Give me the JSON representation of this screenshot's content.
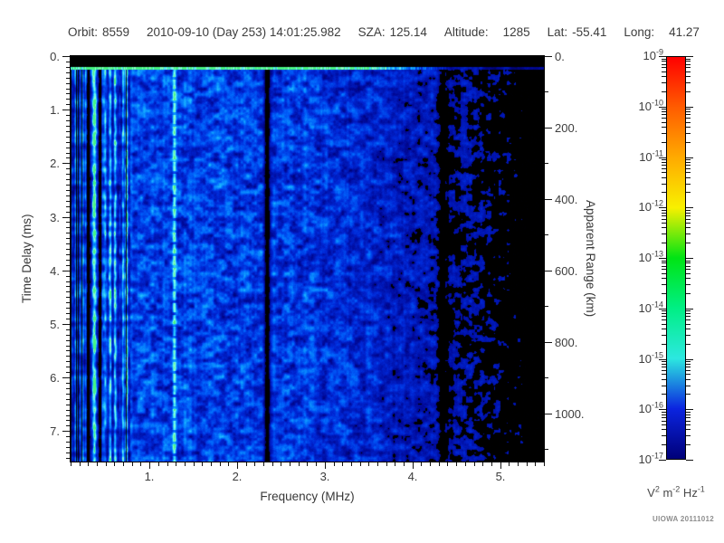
{
  "header": {
    "segments": [
      {
        "label": "Orbit:",
        "value": "8559"
      },
      {
        "label": "",
        "value": "2010-09-10 (Day 253) 14:01:25.982"
      },
      {
        "label": "SZA:",
        "value": "125.14"
      },
      {
        "label": "Altitude:",
        "value": "1285",
        "wide_gap": true
      },
      {
        "label": "Lat:",
        "value": "-55.41"
      },
      {
        "label": "Long:",
        "value": "41.27",
        "wide_gap": true
      }
    ]
  },
  "footer": {
    "credit": "UIOWA 20111012"
  },
  "chart_data": {
    "type": "heatmap",
    "description": "Radar sounder ionogram: received spectral density vs frequency (x) and time delay / apparent range (y), log color scale",
    "xlabel": "Frequency (MHz)",
    "x_range_mhz": [
      0.1,
      5.5
    ],
    "x_major_ticks": {
      "values": [
        1,
        2,
        3,
        4,
        5
      ],
      "labels": [
        "1.",
        "2.",
        "3.",
        "4.",
        "5."
      ]
    },
    "x_minor_tick_step_mhz": 0.1,
    "left_ylabel": "Time Delay (ms)",
    "y_range_ms": [
      0,
      7.57
    ],
    "y_major_ticks": {
      "values": [
        0,
        1,
        2,
        3,
        4,
        5,
        6,
        7
      ],
      "labels": [
        "0.",
        "1.",
        "2.",
        "3.",
        "4.",
        "5.",
        "6.",
        "7."
      ]
    },
    "y_minor_tick_step_ms": 0.1,
    "right_ylabel": "Apparent Range (km)",
    "right_y_range_km": [
      0,
      1135
    ],
    "right_y_major_ticks": {
      "values": [
        0,
        200,
        400,
        600,
        800,
        1000
      ],
      "labels": [
        "0.",
        "200.",
        "400.",
        "600.",
        "800.",
        "1000."
      ]
    },
    "right_y_minor_tick_step_km": 100,
    "grid": "off",
    "colorbar": {
      "scale": "log",
      "range_top_to_bottom": [
        "1e-9",
        "1e-17"
      ],
      "units": "V^2 m^-2 Hz^-1",
      "tick_labels": [
        "10^-9",
        "10^-10",
        "10^-11",
        "10^-12",
        "10^-13",
        "10^-14",
        "10^-15",
        "10^-16",
        "10^-17"
      ],
      "stops_top_to_bottom": [
        "#ff0000",
        "#ff5c00",
        "#ffaa00",
        "#f8f000",
        "#00e414",
        "#00ef84",
        "#2ce8e0",
        "#0b24e0",
        "#000078"
      ]
    },
    "background_field": "mottled blue noise (~1e-16 to 1e-15) with cyan patches, black where below ~1e-17",
    "features": [
      {
        "name": "transmit-blanking-band",
        "time_ms_range": [
          0,
          0.2
        ],
        "appearance": "solid-black"
      },
      {
        "name": "receiver-turn-on-bright-row",
        "time_ms": 0.24,
        "appearance": "bright-cyan-green-row",
        "fade_above_mhz": 3.4
      },
      {
        "name": "electron-plasma-harmonic-line",
        "freq_mhz": 1.28,
        "appearance": "bright-dashed-cyan-column"
      },
      {
        "name": "interference-null-column",
        "freq_mhz": 2.34,
        "appearance": "black-column"
      },
      {
        "name": "dark-columns",
        "freqs_mhz": [
          0.3,
          0.43
        ]
      },
      {
        "name": "striped-noise-region",
        "freq_mhz_max": 0.78,
        "appearance": "bright-cyan-vertical-stripes"
      },
      {
        "name": "weak-signal-region",
        "freq_mhz_range": [
          3.2,
          5.5
        ],
        "appearance": "dark-blue-blobs-on-black"
      },
      {
        "name": "faint-dark-lane",
        "freq_mhz": 4.35
      }
    ]
  }
}
